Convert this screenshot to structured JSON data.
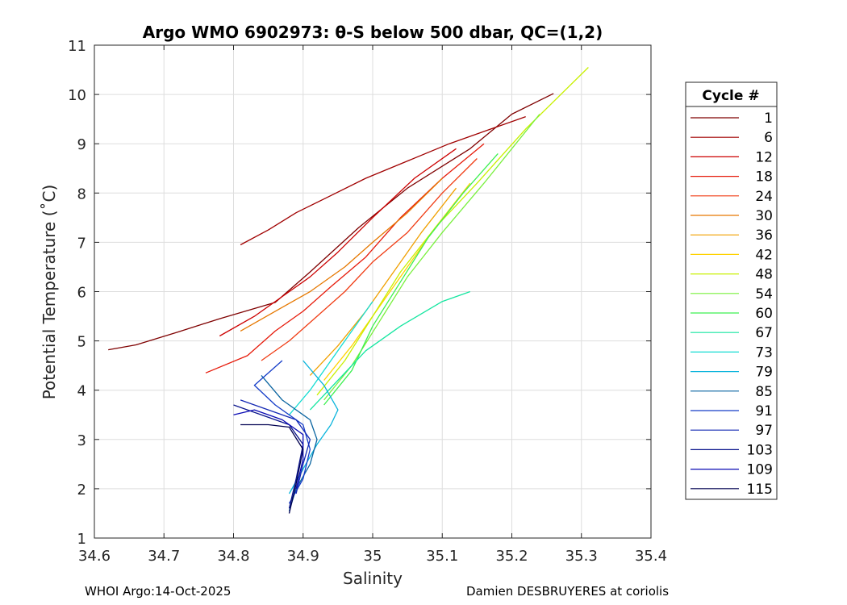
{
  "chart_data": {
    "type": "line",
    "title": "Argo WMO 6902973: θ-S below 500 dbar,  QC=(1,2)",
    "xlabel": "Salinity",
    "ylabel": "Potential Temperature (˚C)",
    "xlim": [
      34.6,
      35.4
    ],
    "ylim": [
      1,
      11
    ],
    "x_ticks": [
      "34.6",
      "34.7",
      "34.8",
      "34.9",
      "35",
      "35.1",
      "35.2",
      "35.3",
      "35.4"
    ],
    "y_ticks": [
      "1",
      "2",
      "3",
      "4",
      "5",
      "6",
      "7",
      "8",
      "9",
      "10",
      "11"
    ],
    "grid": true,
    "legend": {
      "title": "Cycle #",
      "placement": "right-outside",
      "entries": [
        {
          "label": "1",
          "color": "#7f0000"
        },
        {
          "label": "6",
          "color": "#a00000"
        },
        {
          "label": "12",
          "color": "#cc0000"
        },
        {
          "label": "18",
          "color": "#e61a0a"
        },
        {
          "label": "24",
          "color": "#f03c14"
        },
        {
          "label": "30",
          "color": "#e67800"
        },
        {
          "label": "36",
          "color": "#f0a000"
        },
        {
          "label": "42",
          "color": "#ffd200"
        },
        {
          "label": "48",
          "color": "#c8f000"
        },
        {
          "label": "54",
          "color": "#78f03c"
        },
        {
          "label": "60",
          "color": "#3cf050"
        },
        {
          "label": "67",
          "color": "#14e6a0"
        },
        {
          "label": "73",
          "color": "#14dcd2"
        },
        {
          "label": "79",
          "color": "#0ab4dc"
        },
        {
          "label": "85",
          "color": "#0a64a0"
        },
        {
          "label": "91",
          "color": "#143cc8"
        },
        {
          "label": "97",
          "color": "#1428b4"
        },
        {
          "label": "103",
          "color": "#0a148c"
        },
        {
          "label": "109",
          "color": "#0a0ab4"
        },
        {
          "label": "115",
          "color": "#000050"
        }
      ]
    },
    "series": [
      {
        "color": "#7f0000",
        "x": [
          34.62,
          34.66,
          34.72,
          34.78,
          34.86,
          34.91,
          34.98,
          35.05,
          35.14,
          35.2,
          35.26
        ],
        "y": [
          4.82,
          4.92,
          5.18,
          5.45,
          5.78,
          6.4,
          7.3,
          8.1,
          8.9,
          9.6,
          10.02
        ]
      },
      {
        "color": "#a00000",
        "x": [
          34.81,
          34.85,
          34.89,
          34.94,
          34.99,
          35.05,
          35.11,
          35.17,
          35.22
        ],
        "y": [
          6.95,
          7.25,
          7.6,
          7.95,
          8.3,
          8.65,
          9.0,
          9.3,
          9.55
        ]
      },
      {
        "color": "#cc0000",
        "x": [
          34.78,
          34.83,
          34.87,
          34.91,
          34.95,
          35.0,
          35.06,
          35.12
        ],
        "y": [
          5.1,
          5.5,
          5.9,
          6.3,
          6.8,
          7.5,
          8.3,
          8.9
        ]
      },
      {
        "color": "#e61a0a",
        "x": [
          34.76,
          34.82,
          34.86,
          34.9,
          34.94,
          34.99,
          35.04,
          35.1,
          35.16
        ],
        "y": [
          4.35,
          4.7,
          5.2,
          5.6,
          6.1,
          6.7,
          7.5,
          8.3,
          9.0
        ]
      },
      {
        "color": "#f03c14",
        "x": [
          34.84,
          34.88,
          34.92,
          34.96,
          35.0,
          35.05,
          35.1,
          35.15
        ],
        "y": [
          4.6,
          5.0,
          5.5,
          6.0,
          6.6,
          7.2,
          8.0,
          8.7
        ]
      },
      {
        "color": "#e67800",
        "x": [
          34.81,
          34.86,
          34.91,
          34.96,
          35.0,
          35.05,
          35.1
        ],
        "y": [
          5.2,
          5.6,
          6.0,
          6.5,
          7.0,
          7.6,
          8.3
        ]
      },
      {
        "color": "#f0a000",
        "x": [
          34.91,
          34.95,
          34.99,
          35.03,
          35.07,
          35.12
        ],
        "y": [
          4.3,
          4.9,
          5.6,
          6.4,
          7.2,
          8.1
        ]
      },
      {
        "color": "#ffd200",
        "x": [
          34.93,
          34.97,
          35.01,
          35.05,
          35.09,
          35.14
        ],
        "y": [
          4.2,
          4.9,
          5.7,
          6.5,
          7.3,
          8.2
        ]
      },
      {
        "color": "#c8f000",
        "x": [
          34.92,
          34.96,
          35.0,
          35.04,
          35.09,
          35.15,
          35.22,
          35.31
        ],
        "y": [
          3.9,
          4.6,
          5.5,
          6.4,
          7.3,
          8.2,
          9.3,
          10.55
        ]
      },
      {
        "color": "#78f03c",
        "x": [
          34.93,
          34.97,
          35.01,
          35.05,
          35.1,
          35.16,
          35.24
        ],
        "y": [
          3.8,
          4.5,
          5.4,
          6.3,
          7.2,
          8.2,
          9.6
        ]
      },
      {
        "color": "#3cf050",
        "x": [
          34.93,
          34.97,
          35.0,
          35.04,
          35.08,
          35.13,
          35.18
        ],
        "y": [
          3.7,
          4.4,
          5.3,
          6.2,
          7.1,
          8.0,
          8.8
        ]
      },
      {
        "color": "#14e6a0",
        "x": [
          34.91,
          34.95,
          34.99,
          35.04,
          35.1,
          35.14
        ],
        "y": [
          3.6,
          4.2,
          4.8,
          5.3,
          5.8,
          6.0
        ]
      },
      {
        "color": "#14dcd2",
        "x": [
          34.88,
          34.91,
          34.94,
          34.97,
          35.0
        ],
        "y": [
          3.5,
          4.0,
          4.6,
          5.2,
          5.8
        ]
      },
      {
        "color": "#0ab4dc",
        "x": [
          34.88,
          34.9,
          34.92,
          34.94,
          34.95,
          34.93,
          34.9
        ],
        "y": [
          1.9,
          2.4,
          2.9,
          3.3,
          3.6,
          4.1,
          4.6
        ]
      },
      {
        "color": "#0a64a0",
        "x": [
          34.88,
          34.89,
          34.91,
          34.92,
          34.91,
          34.87,
          34.84
        ],
        "y": [
          1.55,
          2.0,
          2.5,
          3.0,
          3.4,
          3.8,
          4.3
        ]
      },
      {
        "color": "#143cc8",
        "x": [
          34.88,
          34.9,
          34.91,
          34.9,
          34.86,
          34.83,
          34.87
        ],
        "y": [
          1.7,
          2.2,
          2.8,
          3.3,
          3.7,
          4.1,
          4.6
        ]
      },
      {
        "color": "#1428b4",
        "x": [
          34.89,
          34.9,
          34.91,
          34.89,
          34.85,
          34.81
        ],
        "y": [
          1.9,
          2.5,
          3.0,
          3.4,
          3.6,
          3.8
        ]
      },
      {
        "color": "#0a148c",
        "x": [
          34.88,
          34.89,
          34.9,
          34.88,
          34.84,
          34.8
        ],
        "y": [
          1.6,
          2.2,
          2.9,
          3.3,
          3.5,
          3.7
        ]
      },
      {
        "color": "#0a0ab4",
        "x": [
          34.89,
          34.9,
          34.9,
          34.87,
          34.83,
          34.8
        ],
        "y": [
          2.0,
          2.6,
          3.1,
          3.4,
          3.6,
          3.5
        ]
      },
      {
        "color": "#000050",
        "x": [
          34.88,
          34.89,
          34.9,
          34.88,
          34.85,
          34.81
        ],
        "y": [
          1.5,
          2.1,
          2.8,
          3.25,
          3.3,
          3.3
        ]
      }
    ]
  },
  "footer": {
    "left": "WHOI Argo:14-Oct-2025",
    "right": "Damien DESBRUYERES at coriolis"
  }
}
